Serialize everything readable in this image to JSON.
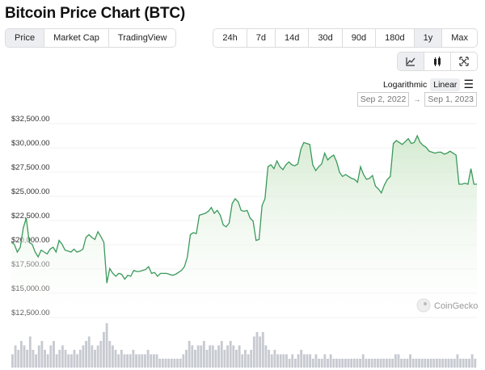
{
  "title": "Bitcoin Price Chart (BTC)",
  "view_tabs": [
    {
      "label": "Price",
      "active": true
    },
    {
      "label": "Market Cap"
    },
    {
      "label": "TradingView"
    }
  ],
  "range_tabs": [
    {
      "label": "24h"
    },
    {
      "label": "7d"
    },
    {
      "label": "14d"
    },
    {
      "label": "30d"
    },
    {
      "label": "90d"
    },
    {
      "label": "180d"
    },
    {
      "label": "1y",
      "active": true
    },
    {
      "label": "Max"
    }
  ],
  "chart_type_buttons": [
    {
      "icon": "line-chart-icon",
      "active": true
    },
    {
      "icon": "candlestick-icon"
    },
    {
      "icon": "fullscreen-icon"
    }
  ],
  "scale": {
    "logarithmic": "Logarithmic",
    "linear": "Linear",
    "selected": "Linear",
    "menu_icon": "hamburger-menu-icon"
  },
  "date_range": {
    "from": "Sep 2, 2022",
    "arrow": "→",
    "to": "Sep 1, 2023"
  },
  "watermark": "CoinGecko",
  "colors": {
    "line": "#3a9a5b",
    "fill": "#d9eed6",
    "volume": "#c7cad1"
  },
  "chart_data": {
    "type": "area",
    "x_range": [
      "Sep 2, 2022",
      "Sep 1, 2023"
    ],
    "y_ticks": [
      "$12,500.00",
      "$15,000.00",
      "$17,500.00",
      "$20,000.00",
      "$22,500.00",
      "$25,000.00",
      "$27,500.00",
      "$30,000.00",
      "$32,500.00"
    ],
    "y_tick_values": [
      12500,
      15000,
      17500,
      20000,
      22500,
      25000,
      27500,
      30000,
      32500
    ],
    "ylim": [
      12500,
      32500
    ],
    "grid": true,
    "price": [
      20000,
      19800,
      19000,
      19500,
      21500,
      22500,
      20000,
      19800,
      19000,
      18500,
      19200,
      19000,
      18800,
      19300,
      19500,
      19000,
      20200,
      19800,
      19200,
      19100,
      19000,
      19300,
      19000,
      19100,
      19300,
      20500,
      20800,
      20500,
      20300,
      21100,
      20600,
      20000,
      15800,
      17300,
      16800,
      16500,
      16800,
      16700,
      16200,
      16600,
      16500,
      17100,
      17000,
      17000,
      17100,
      17200,
      17500,
      16800,
      16900,
      16500,
      16800,
      16800,
      16800,
      16700,
      16600,
      16700,
      16900,
      17100,
      17500,
      18500,
      20800,
      21000,
      20900,
      22800,
      22900,
      23000,
      23200,
      23600,
      23000,
      23300,
      22800,
      21800,
      21600,
      22000,
      24000,
      24500,
      24200,
      23300,
      23200,
      23300,
      22500,
      22200,
      20200,
      20300,
      23800,
      24500,
      27800,
      28000,
      27600,
      28400,
      27800,
      27500,
      28000,
      28300,
      28000,
      27900,
      28100,
      29600,
      30300,
      30200,
      30100,
      28000,
      27400,
      27800,
      28100,
      29200,
      28500,
      28800,
      29000,
      28300,
      27200,
      26800,
      27000,
      26800,
      26600,
      26500,
      26200,
      27800,
      27000,
      26500,
      26600,
      26900,
      25800,
      25500,
      25100,
      25900,
      26500,
      26800,
      30200,
      30500,
      30300,
      30100,
      30400,
      30700,
      30200,
      30300,
      31000,
      30300,
      30000,
      29800,
      29400,
      29300,
      29200,
      29300,
      29300,
      29100,
      29200,
      29400,
      29200,
      29000,
      26000,
      26000,
      26100,
      26000,
      27600,
      26000,
      26000
    ],
    "volume_relative": [
      0.3,
      0.5,
      0.4,
      0.6,
      0.5,
      0.4,
      0.7,
      0.4,
      0.3,
      0.5,
      0.6,
      0.4,
      0.3,
      0.5,
      0.6,
      0.3,
      0.4,
      0.5,
      0.4,
      0.3,
      0.3,
      0.4,
      0.3,
      0.4,
      0.5,
      0.6,
      0.7,
      0.5,
      0.4,
      0.5,
      0.6,
      0.8,
      1.0,
      0.6,
      0.5,
      0.4,
      0.3,
      0.4,
      0.3,
      0.3,
      0.3,
      0.4,
      0.3,
      0.3,
      0.3,
      0.3,
      0.4,
      0.3,
      0.3,
      0.3,
      0.2,
      0.2,
      0.2,
      0.2,
      0.2,
      0.2,
      0.2,
      0.2,
      0.3,
      0.4,
      0.6,
      0.5,
      0.4,
      0.5,
      0.5,
      0.6,
      0.4,
      0.5,
      0.5,
      0.4,
      0.5,
      0.6,
      0.4,
      0.5,
      0.6,
      0.5,
      0.4,
      0.5,
      0.3,
      0.4,
      0.3,
      0.4,
      0.7,
      0.8,
      0.7,
      0.8,
      0.5,
      0.4,
      0.3,
      0.4,
      0.3,
      0.3,
      0.3,
      0.3,
      0.2,
      0.3,
      0.2,
      0.3,
      0.4,
      0.3,
      0.3,
      0.3,
      0.2,
      0.3,
      0.2,
      0.2,
      0.3,
      0.2,
      0.3,
      0.2,
      0.2,
      0.2,
      0.2,
      0.2,
      0.2,
      0.2,
      0.2,
      0.2,
      0.2,
      0.3,
      0.2,
      0.2,
      0.2,
      0.2,
      0.2,
      0.2,
      0.2,
      0.2,
      0.2,
      0.2,
      0.3,
      0.3,
      0.2,
      0.2,
      0.2,
      0.3,
      0.2,
      0.2,
      0.2,
      0.2,
      0.2,
      0.2,
      0.2,
      0.2,
      0.2,
      0.2,
      0.2,
      0.2,
      0.2,
      0.2,
      0.2,
      0.3,
      0.2,
      0.2,
      0.2,
      0.2,
      0.3,
      0.2
    ]
  }
}
